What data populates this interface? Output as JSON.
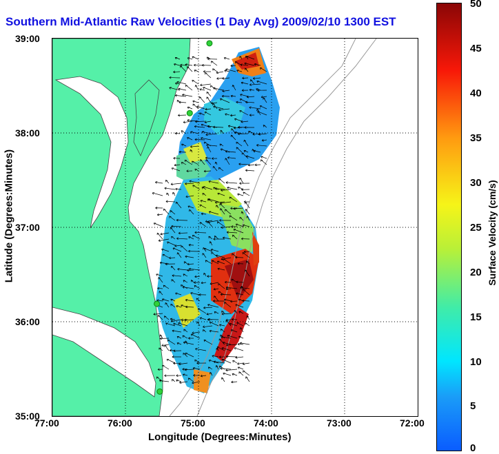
{
  "title": "Southern Mid-Atlantic Raw Velocities (1 Day Avg) 2009/02/10 1300 EST",
  "xaxis": {
    "label": "Longitude (Degrees:Minutes)",
    "ticks": [
      "77:00",
      "76:00",
      "75:00",
      "74:00",
      "73:00",
      "72:00"
    ]
  },
  "yaxis": {
    "label": "Latitude (Degrees:Minutes)",
    "ticks": [
      "39:00",
      "38:00",
      "37:00",
      "36:00",
      "35:00"
    ]
  },
  "colorbar": {
    "label": "Surface Velocity (cm/s)",
    "ticks": [
      "50",
      "45",
      "40",
      "35",
      "30",
      "25",
      "20",
      "15",
      "10",
      "5",
      "0"
    ],
    "min": 0,
    "max": 50
  },
  "colors": {
    "land": "#55f0a8",
    "coast_line": "#444444",
    "bathymetry": "#999999",
    "arrow": "#000000",
    "station": "#2fd23a",
    "title": "#1010e0"
  },
  "map": {
    "lon_range": [
      -77.0,
      -72.0
    ],
    "lat_range": [
      35.0,
      39.0
    ],
    "grid": true,
    "stations": [
      {
        "lon": -74.85,
        "lat": 38.95
      },
      {
        "lon": -75.12,
        "lat": 38.21
      },
      {
        "lon": -75.57,
        "lat": 36.19
      },
      {
        "lon": -75.53,
        "lat": 35.26
      }
    ]
  }
}
